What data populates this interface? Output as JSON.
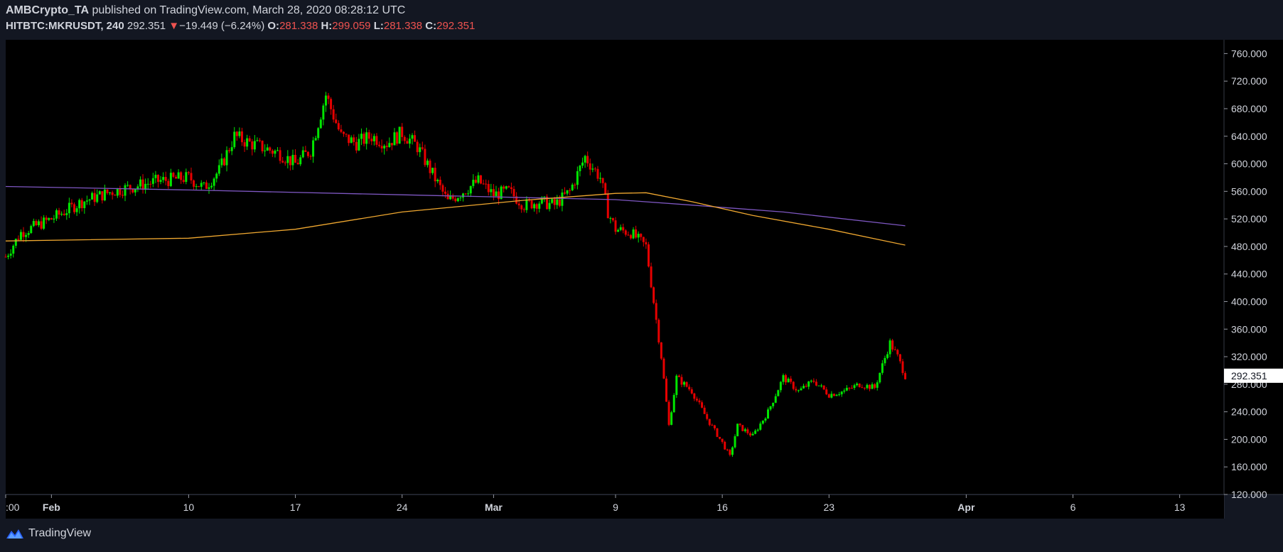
{
  "header": {
    "author": "AMBCrypto_TA",
    "published_text": "published on TradingView.com, March 28, 2020 08:28:12 UTC",
    "symbol": "HITBTC:MKRUSDT, 240",
    "last": "292.351",
    "change_arrow": "▼",
    "change": "−19.449 (−6.24%)",
    "open_label": "O:",
    "open": "281.338",
    "high_label": "H:",
    "high": "299.059",
    "low_label": "L:",
    "low": "281.338",
    "close_label": "C:",
    "close": "292.351"
  },
  "footer": {
    "brand": "TradingView",
    "icon": "tradingview-logo-icon"
  },
  "colors": {
    "background": "#000000",
    "panel": "#131722",
    "up": "#00e600",
    "down": "#e60000",
    "ma_fast": "#f0a830",
    "ma_slow": "#7e57c2",
    "text": "#d1d4dc"
  },
  "chart_data": {
    "type": "candlestick",
    "y_axis": {
      "min": 120,
      "max": 780,
      "position": "right",
      "ticks": [
        "760.000",
        "720.000",
        "680.000",
        "640.000",
        "600.000",
        "560.000",
        "520.000",
        "480.000",
        "440.000",
        "400.000",
        "360.000",
        "320.000",
        "280.000",
        "240.000",
        "200.000",
        "160.000",
        "120.000"
      ]
    },
    "x_axis": {
      "ticks": [
        ":00",
        "Feb",
        "10",
        "17",
        "24",
        "Mar",
        "9",
        "16",
        "23",
        "Apr",
        "6",
        "13"
      ]
    },
    "current_price_label": "292.351",
    "price_path_key_points": [
      [
        "Jan 29",
        465
      ],
      [
        "Jan 30",
        500
      ],
      [
        "Feb 1",
        520
      ],
      [
        "Feb 3",
        545
      ],
      [
        "Feb 5",
        560
      ],
      [
        "Feb 8",
        575
      ],
      [
        "Feb 10",
        580
      ],
      [
        "Feb 11",
        565
      ],
      [
        "Feb 12",
        590
      ],
      [
        "Feb 13",
        640
      ],
      [
        "Feb 14",
        630
      ],
      [
        "Feb 16",
        615
      ],
      [
        "Feb 17",
        600
      ],
      [
        "Feb 18",
        620
      ],
      [
        "Feb 19",
        700
      ],
      [
        "Feb 20",
        640
      ],
      [
        "Feb 21",
        630
      ],
      [
        "Feb 22",
        640
      ],
      [
        "Feb 23",
        630
      ],
      [
        "Feb 24",
        645
      ],
      [
        "Feb 25",
        625
      ],
      [
        "Feb 26",
        585
      ],
      [
        "Feb 27",
        545
      ],
      [
        "Feb 28",
        560
      ],
      [
        "Feb 29",
        575
      ],
      [
        "Mar 1",
        555
      ],
      [
        "Mar 2",
        560
      ],
      [
        "Mar 3",
        540
      ],
      [
        "Mar 4",
        545
      ],
      [
        "Mar 5",
        540
      ],
      [
        "Mar 6",
        560
      ],
      [
        "Mar 7",
        610
      ],
      [
        "Mar 8",
        580
      ],
      [
        "Mar 8.5",
        530
      ],
      [
        "Mar 9",
        505
      ],
      [
        "Mar 10",
        500
      ],
      [
        "Mar 11",
        480
      ],
      [
        "Mar 12",
        320
      ],
      [
        "Mar 12.5",
        220
      ],
      [
        "Mar 13",
        290
      ],
      [
        "Mar 14",
        270
      ],
      [
        "Mar 15",
        230
      ],
      [
        "Mar 16",
        195
      ],
      [
        "Mar 16.5",
        175
      ],
      [
        "Mar 17",
        220
      ],
      [
        "Mar 18",
        205
      ],
      [
        "Mar 19",
        240
      ],
      [
        "Mar 20",
        290
      ],
      [
        "Mar 21",
        270
      ],
      [
        "Mar 22",
        285
      ],
      [
        "Mar 23",
        265
      ],
      [
        "Mar 24",
        270
      ],
      [
        "Mar 25",
        280
      ],
      [
        "Mar 26",
        275
      ],
      [
        "Mar 27",
        340
      ],
      [
        "Mar 27.5",
        320
      ],
      [
        "Mar 28",
        292
      ]
    ],
    "moving_averages": [
      {
        "key_points": [
          [
            "Jan 29",
            567
          ],
          [
            "Feb 10",
            562
          ],
          [
            "Feb 24",
            555
          ],
          [
            "Mar 9",
            548
          ],
          [
            "Mar 14",
            540
          ],
          [
            "Mar 20",
            530
          ],
          [
            "Mar 28",
            510
          ]
        ]
      },
      {
        "key_points": [
          [
            "Jan 29",
            488
          ],
          [
            "Feb 10",
            492
          ],
          [
            "Feb 17",
            505
          ],
          [
            "Feb 24",
            530
          ],
          [
            "Mar 3",
            547
          ],
          [
            "Mar 9",
            557
          ],
          [
            "Mar 11",
            558
          ],
          [
            "Mar 14",
            545
          ],
          [
            "Mar 18",
            525
          ],
          [
            "Mar 23",
            505
          ],
          [
            "Mar 28",
            482
          ]
        ]
      }
    ]
  }
}
